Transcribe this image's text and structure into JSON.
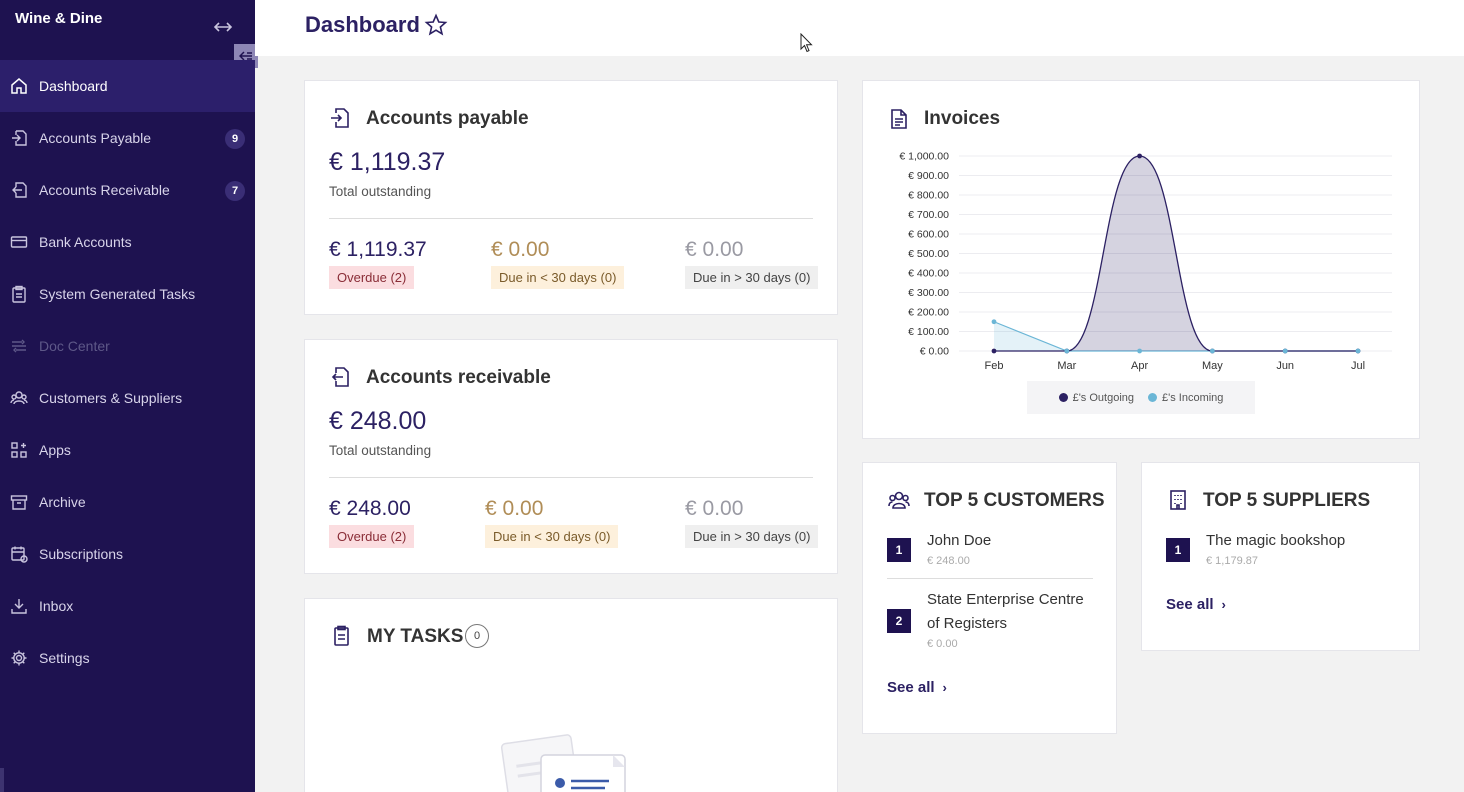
{
  "app": {
    "brand": "Wine & Dine"
  },
  "sidebar": {
    "items": [
      {
        "label": "Dashboard",
        "icon": "home-icon",
        "badge": ""
      },
      {
        "label": "Accounts Payable",
        "icon": "payable-icon",
        "badge": "9"
      },
      {
        "label": "Accounts Receivable",
        "icon": "receivable-icon",
        "badge": "7"
      },
      {
        "label": "Bank Accounts",
        "icon": "bank-card-icon",
        "badge": ""
      },
      {
        "label": "System Generated Tasks",
        "icon": "clipboard-icon",
        "badge": ""
      },
      {
        "label": "Doc Center",
        "icon": "doc-center-icon",
        "badge": ""
      },
      {
        "label": "Customers & Suppliers",
        "icon": "people-icon",
        "badge": ""
      },
      {
        "label": "Apps",
        "icon": "apps-grid-icon",
        "badge": ""
      },
      {
        "label": "Archive",
        "icon": "archive-icon",
        "badge": ""
      },
      {
        "label": "Subscriptions",
        "icon": "calendar-icon",
        "badge": ""
      },
      {
        "label": "Inbox",
        "icon": "inbox-icon",
        "badge": ""
      },
      {
        "label": "Settings",
        "icon": "gear-icon",
        "badge": ""
      }
    ]
  },
  "header": {
    "title": "Dashboard"
  },
  "payable": {
    "title": "Accounts payable",
    "total": "€ 1,119.37",
    "total_label": "Total outstanding",
    "overdue_amount": "€ 1,119.37",
    "overdue_label": "Overdue (2)",
    "due30_amount": "€ 0.00",
    "due30_label": "Due in < 30 days (0)",
    "due30plus_amount": "€ 0.00",
    "due30plus_label": "Due in > 30 days (0)"
  },
  "receivable": {
    "title": "Accounts receivable",
    "total": "€ 248.00",
    "total_label": "Total outstanding",
    "overdue_amount": "€ 248.00",
    "overdue_label": "Overdue (2)",
    "due30_amount": "€ 0.00",
    "due30_label": "Due in < 30 days (0)",
    "due30plus_amount": "€ 0.00",
    "due30plus_label": "Due in > 30 days (0)"
  },
  "tasks": {
    "title": "MY TASKS",
    "count": "0"
  },
  "invoices": {
    "title": "Invoices"
  },
  "chart_data": {
    "type": "area",
    "categories": [
      "Feb",
      "Mar",
      "Apr",
      "May",
      "Jun",
      "Jul"
    ],
    "y_ticks": [
      "€ 0.00",
      "€ 100.00",
      "€ 200.00",
      "€ 300.00",
      "€ 400.00",
      "€ 500.00",
      "€ 600.00",
      "€ 700.00",
      "€ 800.00",
      "€ 900.00",
      "€ 1,000.00"
    ],
    "ylim": [
      0,
      1000
    ],
    "series": [
      {
        "name": "£'s Outgoing",
        "values": [
          0,
          0,
          1000,
          0,
          0,
          0
        ],
        "color": "#2c2163"
      },
      {
        "name": "£'s Incoming",
        "values": [
          150,
          0,
          0,
          0,
          0,
          0
        ],
        "color": "#6bb6d6"
      }
    ],
    "legend": "bottom",
    "grid": true
  },
  "customers": {
    "title": "TOP 5 CUSTOMERS",
    "items": [
      {
        "rank": "1",
        "name": "John Doe",
        "amount": "€ 248.00"
      },
      {
        "rank": "2",
        "name": "State Enterprise Centre of Registers",
        "amount": "€ 0.00"
      }
    ],
    "see_all": "See all"
  },
  "suppliers": {
    "title": "TOP 5 SUPPLIERS",
    "items": [
      {
        "rank": "1",
        "name": "The magic bookshop",
        "amount": "€ 1,179.87"
      }
    ],
    "see_all": "See all"
  }
}
